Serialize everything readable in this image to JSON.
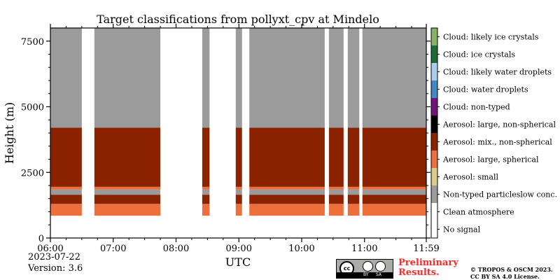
{
  "chart_data": {
    "type": "heatmap",
    "title": "Target classifications from pollyxt_cpv at Mindelo",
    "xlabel": "UTC",
    "ylabel": "Height (m)",
    "x_ticks": [
      "06:00",
      "07:00",
      "08:00",
      "09:00",
      "10:00",
      "11:00",
      "11:59"
    ],
    "y_ticks": [
      0,
      2500,
      5000,
      7500
    ],
    "ylim": [
      0,
      8000
    ],
    "xlim": [
      "06:00",
      "11:59"
    ],
    "legend_position": "right colorbar",
    "classes": [
      {
        "value": 0,
        "label": "No signal",
        "color": "#ffffff"
      },
      {
        "value": 1,
        "label": "Clean atmosphere",
        "color": "#ffffff"
      },
      {
        "value": 2,
        "label": "Non-typed particleslow conc.",
        "color": "#9b9b9b"
      },
      {
        "value": 3,
        "label": "Aerosol: small",
        "color": "#d7cd88"
      },
      {
        "value": 4,
        "label": "Aerosol: large, spherical",
        "color": "#ec6f3c"
      },
      {
        "value": 5,
        "label": "Aerosol: mix., non-spherical",
        "color": "#8b2300"
      },
      {
        "value": 6,
        "label": "Aerosol: large, non-spherical",
        "color": "#000000"
      },
      {
        "value": 7,
        "label": "Cloud: non-typed",
        "color": "#74127d"
      },
      {
        "value": 8,
        "label": "Cloud: water droplets",
        "color": "#3f89c4"
      },
      {
        "value": 9,
        "label": "Cloud: likely water droplets",
        "color": "#a9cfeb"
      },
      {
        "value": 10,
        "label": "Cloud: ice crystals",
        "color": "#1c6c35"
      },
      {
        "value": 11,
        "label": "Cloud: likely ice crystals",
        "color": "#86b467"
      }
    ],
    "layers": [
      {
        "class": "No signal",
        "from_m": 0,
        "to_m": 850
      },
      {
        "class": "Aerosol: large, spherical",
        "from_m": 850,
        "to_m": 1300
      },
      {
        "class": "Aerosol: mix., non-spherical",
        "from_m": 1300,
        "to_m": 1650
      },
      {
        "class": "Non-typed particleslow conc.",
        "from_m": 1650,
        "to_m": 1850
      },
      {
        "class": "Aerosol: large, spherical",
        "from_m": 1850,
        "to_m": 1950
      },
      {
        "class": "Aerosol: mix., non-spherical",
        "from_m": 1950,
        "to_m": 4200
      },
      {
        "class": "Non-typed particleslow conc.",
        "from_m": 4200,
        "to_m": 8000
      }
    ],
    "no_data_periods_utc": [
      [
        "06:30",
        "06:42"
      ],
      [
        "07:45",
        "08:25"
      ],
      [
        "08:32",
        "08:57"
      ],
      [
        "09:03",
        "09:10"
      ],
      [
        "10:22",
        "10:26"
      ],
      [
        "10:40",
        "10:44"
      ],
      [
        "10:55",
        "10:58"
      ]
    ]
  },
  "footer": {
    "date": "2023-07-22",
    "version": "Version: 3.6",
    "preliminary": "Preliminary\nResults.",
    "copyright": "© TROPOS & OSCM 2023.\nCC BY SA 4.0 License.",
    "license_badge": {
      "cc": "cc",
      "by": "BY",
      "sa": "SA"
    }
  }
}
